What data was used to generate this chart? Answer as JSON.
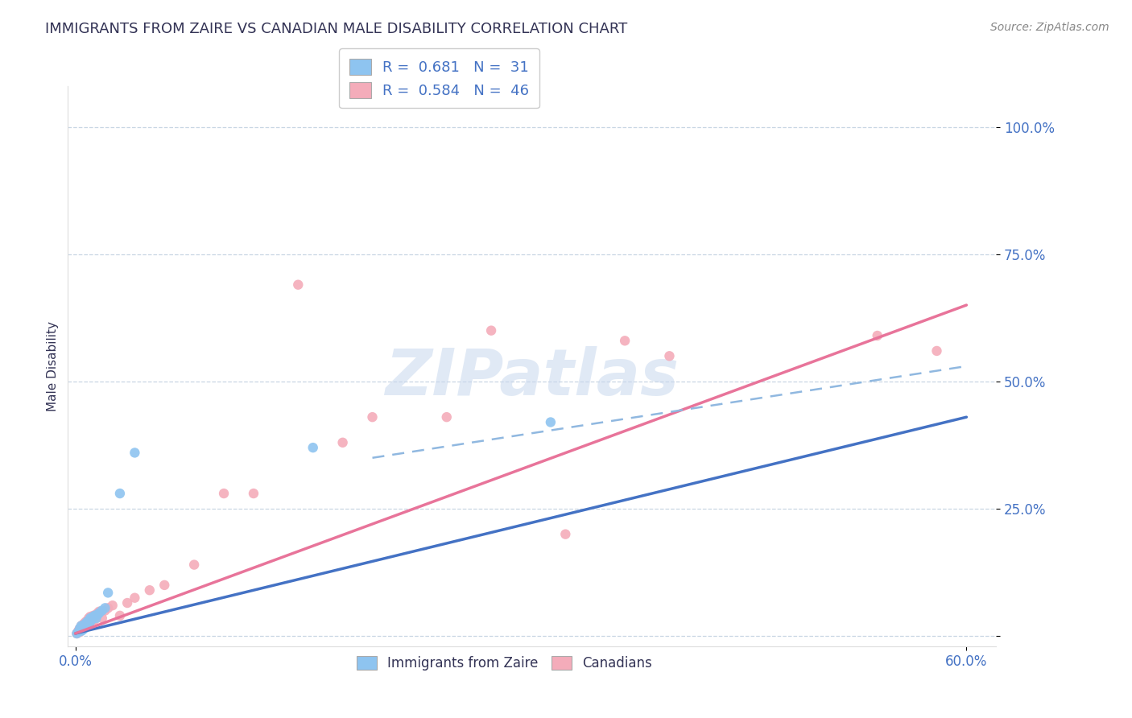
{
  "title": "IMMIGRANTS FROM ZAIRE VS CANADIAN MALE DISABILITY CORRELATION CHART",
  "source_text": "Source: ZipAtlas.com",
  "ylabel": "Male Disability",
  "watermark": "ZIPatlas",
  "xlim": [
    -0.005,
    0.62
  ],
  "ylim": [
    -0.02,
    1.08
  ],
  "x_ticks": [
    0.0,
    0.6
  ],
  "x_tick_labels": [
    "0.0%",
    "60.0%"
  ],
  "y_ticks": [
    0.0,
    0.25,
    0.5,
    0.75,
    1.0
  ],
  "y_tick_labels": [
    "",
    "25.0%",
    "50.0%",
    "75.0%",
    "100.0%"
  ],
  "legend1_R": "0.681",
  "legend1_N": "31",
  "legend2_R": "0.584",
  "legend2_N": "46",
  "blue_color": "#8EC4F0",
  "pink_color": "#F4ACBA",
  "blue_line_color": "#4472C4",
  "pink_line_color": "#E8749A",
  "dashed_line_color": "#90B8E0",
  "title_color": "#333355",
  "label_color": "#4472C4",
  "grid_color": "#BBCCDD",
  "blue_scatter_x": [
    0.001,
    0.002,
    0.003,
    0.003,
    0.004,
    0.004,
    0.005,
    0.005,
    0.006,
    0.006,
    0.007,
    0.007,
    0.008,
    0.008,
    0.009,
    0.009,
    0.01,
    0.01,
    0.011,
    0.012,
    0.013,
    0.014,
    0.015,
    0.016,
    0.018,
    0.02,
    0.022,
    0.03,
    0.04,
    0.16,
    0.32
  ],
  "blue_scatter_y": [
    0.005,
    0.008,
    0.01,
    0.015,
    0.01,
    0.02,
    0.012,
    0.018,
    0.015,
    0.022,
    0.018,
    0.025,
    0.02,
    0.028,
    0.022,
    0.03,
    0.028,
    0.035,
    0.032,
    0.038,
    0.04,
    0.035,
    0.042,
    0.045,
    0.05,
    0.055,
    0.085,
    0.28,
    0.36,
    0.37,
    0.42
  ],
  "pink_scatter_x": [
    0.001,
    0.002,
    0.003,
    0.003,
    0.004,
    0.004,
    0.005,
    0.005,
    0.006,
    0.006,
    0.007,
    0.007,
    0.008,
    0.008,
    0.009,
    0.009,
    0.01,
    0.01,
    0.011,
    0.012,
    0.013,
    0.014,
    0.015,
    0.016,
    0.018,
    0.02,
    0.022,
    0.025,
    0.03,
    0.035,
    0.04,
    0.05,
    0.06,
    0.08,
    0.1,
    0.12,
    0.15,
    0.18,
    0.2,
    0.25,
    0.28,
    0.33,
    0.37,
    0.4,
    0.54,
    0.58
  ],
  "pink_scatter_y": [
    0.005,
    0.01,
    0.008,
    0.015,
    0.012,
    0.02,
    0.015,
    0.022,
    0.018,
    0.025,
    0.02,
    0.028,
    0.022,
    0.03,
    0.025,
    0.035,
    0.028,
    0.038,
    0.03,
    0.04,
    0.032,
    0.042,
    0.045,
    0.048,
    0.035,
    0.05,
    0.055,
    0.06,
    0.04,
    0.065,
    0.075,
    0.09,
    0.1,
    0.14,
    0.28,
    0.28,
    0.69,
    0.38,
    0.43,
    0.43,
    0.6,
    0.2,
    0.58,
    0.55,
    0.59,
    0.56
  ],
  "blue_trend_x": [
    0.0,
    0.6
  ],
  "blue_trend_y": [
    0.005,
    0.43
  ],
  "pink_trend_x": [
    0.0,
    0.6
  ],
  "pink_trend_y": [
    0.005,
    0.65
  ],
  "dashed_trend_x": [
    0.2,
    0.6
  ],
  "dashed_trend_y": [
    0.35,
    0.53
  ]
}
